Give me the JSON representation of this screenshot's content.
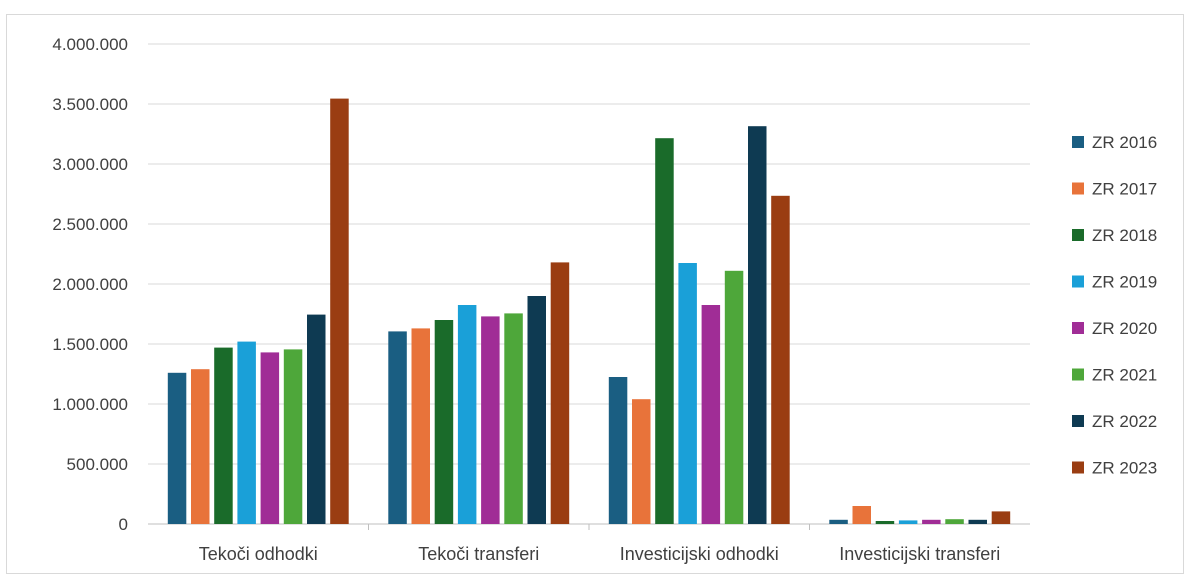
{
  "chart_data": {
    "type": "bar",
    "title": "",
    "xlabel": "",
    "ylabel": "",
    "ylim": [
      0,
      4000000
    ],
    "yticks": [
      0,
      500000,
      1000000,
      1500000,
      2000000,
      2500000,
      3000000,
      3500000,
      4000000
    ],
    "ytick_labels": [
      "0",
      "500.000",
      "1.000.000",
      "1.500.000",
      "2.000.000",
      "2.500.000",
      "3.000.000",
      "3.500.000",
      "4.000.000"
    ],
    "grid": true,
    "legend_position": "right",
    "categories": [
      "Tekoči odhodki",
      "Tekoči transferi",
      "Investicijski odhodki",
      "Investicijski transferi"
    ],
    "series": [
      {
        "name": "ZR 2016",
        "color": "#1a5e82",
        "values": [
          1260000,
          1605000,
          1225000,
          35000
        ]
      },
      {
        "name": "ZR 2017",
        "color": "#e8733a",
        "values": [
          1290000,
          1630000,
          1040000,
          150000
        ]
      },
      {
        "name": "ZR 2018",
        "color": "#1a6b2a",
        "values": [
          1470000,
          1700000,
          3215000,
          25000
        ]
      },
      {
        "name": "ZR 2019",
        "color": "#1aa0d8",
        "values": [
          1520000,
          1825000,
          2175000,
          30000
        ]
      },
      {
        "name": "ZR 2020",
        "color": "#a02d96",
        "values": [
          1430000,
          1730000,
          1825000,
          35000
        ]
      },
      {
        "name": "ZR 2021",
        "color": "#4ea73a",
        "values": [
          1455000,
          1755000,
          2110000,
          40000
        ]
      },
      {
        "name": "ZR 2022",
        "color": "#0e3a52",
        "values": [
          1745000,
          1900000,
          3315000,
          35000
        ]
      },
      {
        "name": "ZR 2023",
        "color": "#9a3d12",
        "values": [
          3545000,
          2180000,
          2735000,
          105000
        ]
      }
    ]
  }
}
